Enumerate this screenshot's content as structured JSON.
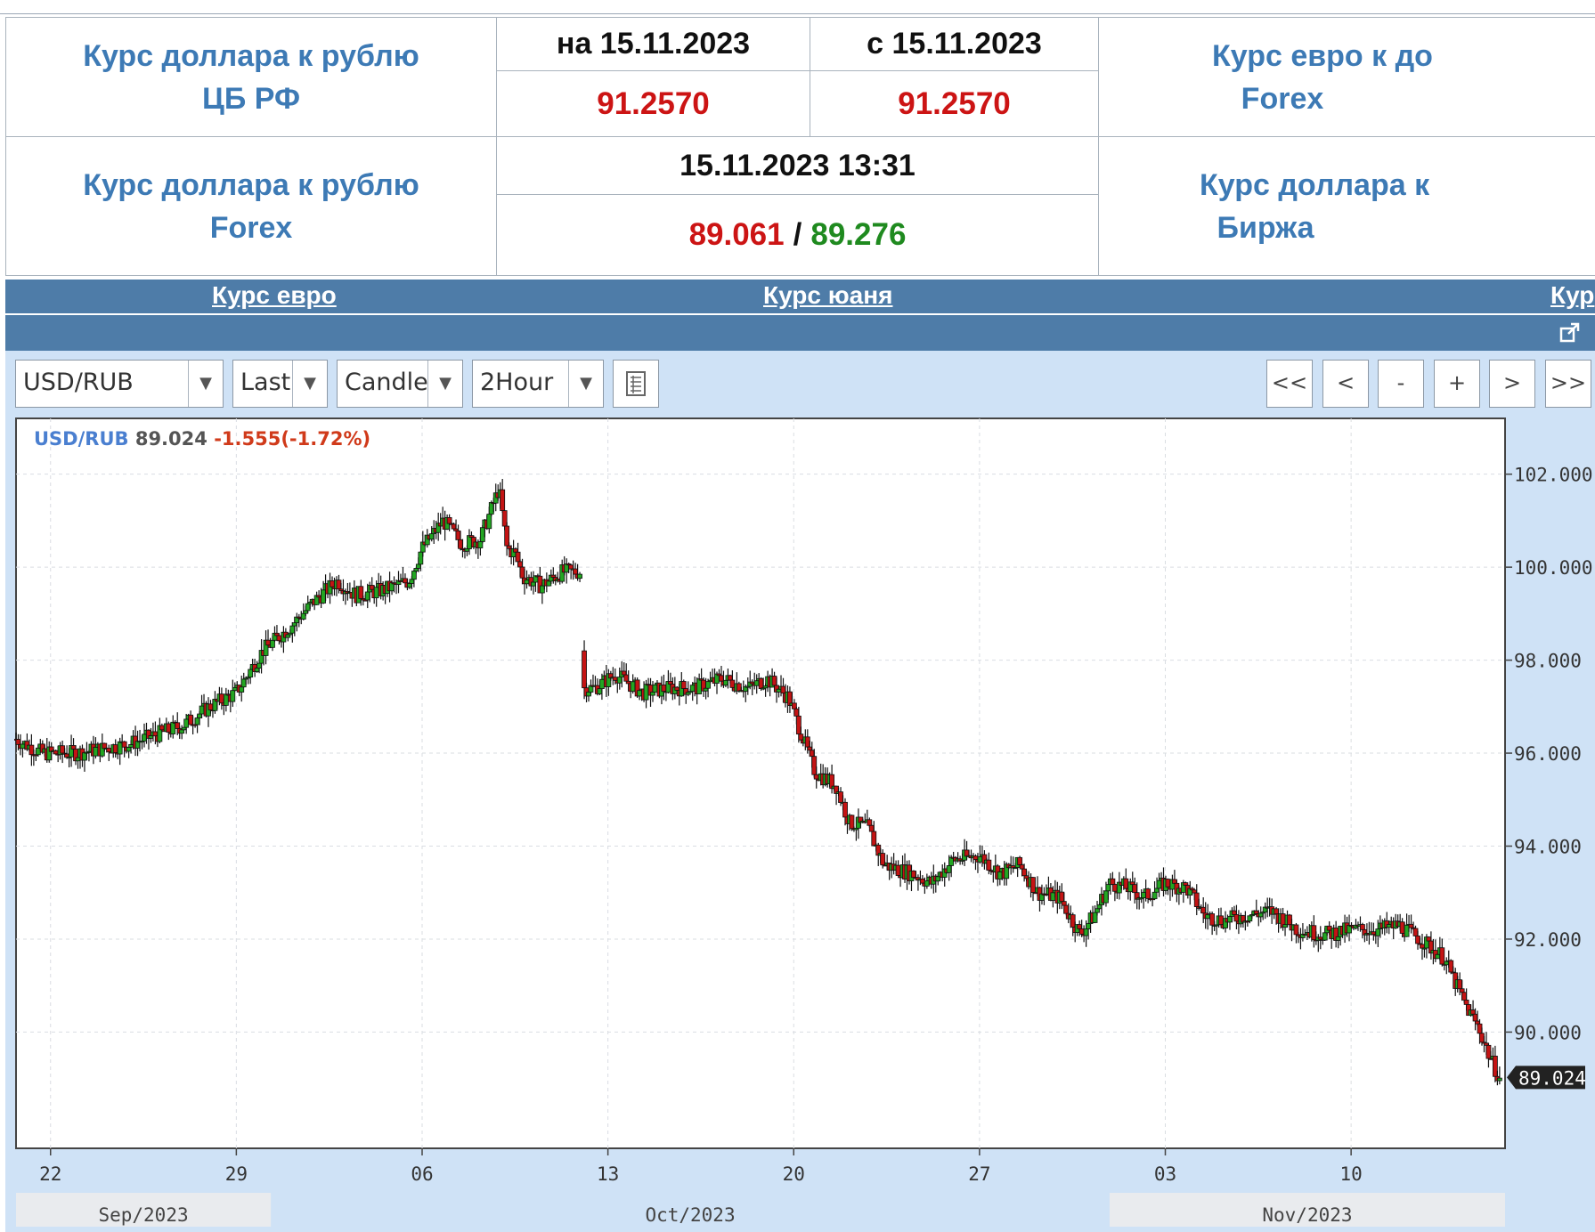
{
  "rates_table": {
    "row1": {
      "label_line1": "Курс доллара к рублю",
      "label_line2": "ЦБ РФ",
      "date_on": "на 15.11.2023",
      "date_from": "с 15.11.2023",
      "value_on": "91.2570",
      "value_from": "91.2570",
      "right_label_line1": "Курс евро к до",
      "right_label_line2": "Forex"
    },
    "row2": {
      "label_line1": "Курс доллара к рублю",
      "label_line2": "Forex",
      "datetime": "15.11.2023 13:31",
      "bid": "89.061",
      "separator": "/",
      "ask": "89.276",
      "right_label_line1": "Курс доллара к",
      "right_label_line2": "Биржа"
    }
  },
  "nav": {
    "links": [
      "Курс евро",
      "Курс юаня",
      "Кур"
    ],
    "expand_icon": "expand-icon"
  },
  "toolbar": {
    "symbol": "USD/RUB",
    "price_field": "Last",
    "chart_style": "Candle",
    "interval": "2Hour",
    "settings_icon": "list-icon",
    "nav_buttons": [
      "<<",
      "<",
      "-",
      "+",
      ">",
      ">>"
    ]
  },
  "chart_data": {
    "type": "candlestick",
    "symbol": "USD/RUB",
    "last": "89.024",
    "change": "-1.555(-1.72%)",
    "current_price_label": "89.024",
    "ylim": [
      87.5,
      103.2
    ],
    "yticks": [
      90,
      92,
      94,
      96,
      98,
      100,
      102
    ],
    "ytick_labels": [
      "90.000",
      "92.000",
      "94.000",
      "96.000",
      "98.000",
      "100.000",
      "102.000"
    ],
    "xticks": [
      {
        "day": 0,
        "label": "22"
      },
      {
        "day": 7,
        "label": "29"
      },
      {
        "day": 14,
        "label": "06"
      },
      {
        "day": 21,
        "label": "13"
      },
      {
        "day": 28,
        "label": "20"
      },
      {
        "day": 35,
        "label": "27"
      },
      {
        "day": 42,
        "label": "03"
      },
      {
        "day": 49,
        "label": "10"
      }
    ],
    "xlim_days": [
      -1.3,
      54.8
    ],
    "month_labels": [
      {
        "label": "Sep/2023",
        "from_day": -1.3,
        "to_day": 8.3,
        "shaded": true
      },
      {
        "label": "Oct/2023",
        "from_day": 8.3,
        "to_day": 39.9,
        "shaded": false
      },
      {
        "label": "Nov/2023",
        "from_day": 39.9,
        "to_day": 54.8,
        "shaded": true
      }
    ],
    "close_path": [
      [
        -1.3,
        96.3
      ],
      [
        -0.3,
        96.0
      ],
      [
        1.0,
        96.0
      ],
      [
        2.0,
        96.1
      ],
      [
        3.0,
        96.2
      ],
      [
        4.0,
        96.4
      ],
      [
        5.0,
        96.6
      ],
      [
        6.0,
        97.0
      ],
      [
        7.0,
        97.3
      ],
      [
        8.0,
        98.2
      ],
      [
        9.0,
        98.7
      ],
      [
        10.0,
        99.3
      ],
      [
        10.8,
        99.7
      ],
      [
        11.5,
        99.4
      ],
      [
        12.5,
        99.5
      ],
      [
        13.5,
        99.7
      ],
      [
        14.0,
        100.4
      ],
      [
        14.8,
        101.0
      ],
      [
        15.5,
        100.5
      ],
      [
        16.2,
        100.6
      ],
      [
        16.9,
        101.7
      ],
      [
        17.2,
        100.4
      ],
      [
        17.5,
        100.3
      ],
      [
        17.8,
        99.8
      ],
      [
        18.5,
        99.6
      ],
      [
        19.3,
        99.9
      ],
      [
        20.0,
        99.9
      ],
      [
        20.1,
        97.4
      ],
      [
        20.5,
        97.4
      ],
      [
        21.3,
        97.7
      ],
      [
        22.3,
        97.3
      ],
      [
        23.3,
        97.4
      ],
      [
        24.3,
        97.4
      ],
      [
        25.3,
        97.6
      ],
      [
        26.3,
        97.4
      ],
      [
        27.0,
        97.6
      ],
      [
        27.8,
        97.2
      ],
      [
        28.3,
        96.4
      ],
      [
        28.8,
        95.6
      ],
      [
        29.6,
        95.3
      ],
      [
        30.1,
        94.5
      ],
      [
        30.8,
        94.4
      ],
      [
        31.4,
        93.6
      ],
      [
        32.5,
        93.4
      ],
      [
        33.2,
        93.2
      ],
      [
        34.0,
        93.7
      ],
      [
        35.0,
        93.8
      ],
      [
        35.8,
        93.4
      ],
      [
        36.5,
        93.6
      ],
      [
        37.2,
        93.0
      ],
      [
        38.0,
        92.9
      ],
      [
        38.8,
        92.1
      ],
      [
        39.3,
        92.5
      ],
      [
        39.9,
        93.2
      ],
      [
        40.6,
        93.1
      ],
      [
        41.2,
        92.9
      ],
      [
        42.0,
        93.2
      ],
      [
        42.8,
        93.1
      ],
      [
        43.5,
        92.5
      ],
      [
        44.2,
        92.4
      ],
      [
        45.0,
        92.5
      ],
      [
        46.0,
        92.6
      ],
      [
        47.0,
        92.2
      ],
      [
        48.0,
        92.1
      ],
      [
        49.0,
        92.2
      ],
      [
        50.0,
        92.2
      ],
      [
        50.8,
        92.3
      ],
      [
        51.6,
        92.0
      ],
      [
        52.5,
        91.6
      ],
      [
        53.3,
        90.6
      ],
      [
        53.8,
        90.1
      ],
      [
        54.2,
        89.5
      ],
      [
        54.6,
        89.0
      ]
    ]
  }
}
